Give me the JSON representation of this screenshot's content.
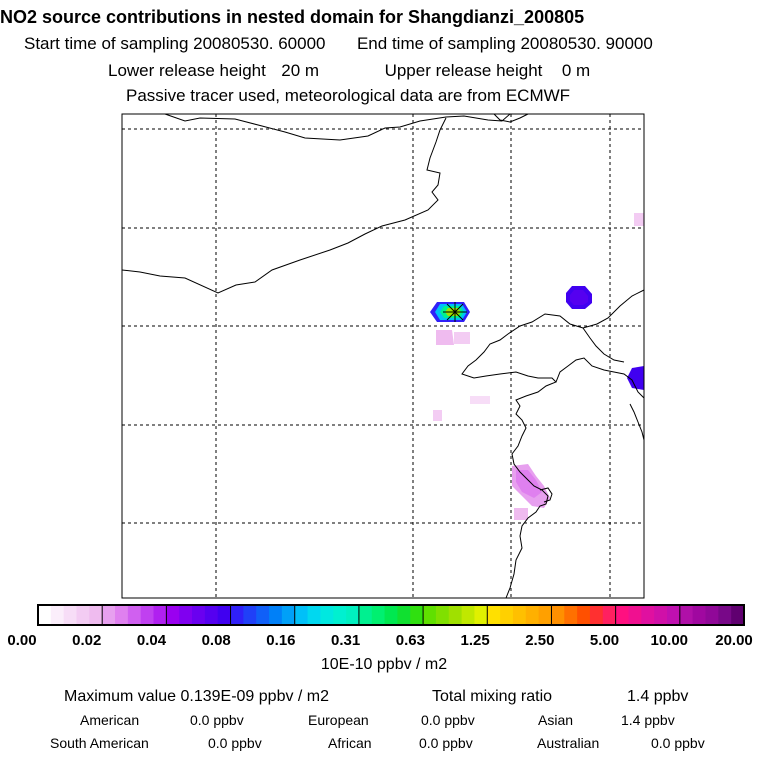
{
  "header": {
    "title": "NO2 source contributions in nested domain for Shangdianzi_200805",
    "start_label": "Start time of sampling",
    "start_value": "20080530. 60000",
    "end_label": "End time of sampling",
    "end_value": "20080530. 90000",
    "lower_label": "Lower release height",
    "lower_value": "20 m",
    "upper_label": "Upper release height",
    "upper_value": "0 m",
    "tracer_note": "Passive tracer used, meteorological data are from ECMWF"
  },
  "colorbar": {
    "tick_labels": [
      "0.00",
      "0.02",
      "0.04",
      "0.08",
      "0.16",
      "0.31",
      "0.63",
      "1.25",
      "2.50",
      "5.00",
      "10.00",
      "20.00"
    ],
    "segment_colors": [
      [
        "#ffffff",
        "#fbeefb",
        "#f7ddf7",
        "#f3ccf3",
        "#efbbef"
      ],
      [
        "#e7a0ef",
        "#df80ef",
        "#d060f0",
        "#c040f0",
        "#b020f0"
      ],
      [
        "#9a00f0",
        "#8000f0",
        "#6a00f0",
        "#5500f0",
        "#4000f0"
      ],
      [
        "#3020f8",
        "#2040f8",
        "#1060f8",
        "#0080f8",
        "#00a0f8"
      ],
      [
        "#00c0f8",
        "#00d8f0",
        "#00e8e0",
        "#00f0d0",
        "#00f0c0"
      ],
      [
        "#00f090",
        "#00f070",
        "#00e850",
        "#10e030",
        "#30e010"
      ],
      [
        "#60e000",
        "#80e000",
        "#a0e000",
        "#c0e800",
        "#e0f000"
      ],
      [
        "#ffe000",
        "#ffd000",
        "#ffc000",
        "#ffb000",
        "#ffa000"
      ],
      [
        "#ff9000",
        "#ff7000",
        "#ff5000",
        "#ff3030",
        "#ff2060"
      ],
      [
        "#ff1080",
        "#f01090",
        "#e010a0",
        "#d010a8",
        "#c010b0"
      ],
      [
        "#b010a8",
        "#a008a0",
        "#900898",
        "#780888",
        "#600070"
      ]
    ],
    "units": "10E-10 ppbv / m2"
  },
  "summary": {
    "max_label": "Maximum value",
    "max_value": "0.139E-09 ppbv / m2",
    "total_label": "Total mixing ratio",
    "total_value": "1.4 ppbv"
  },
  "regions": [
    {
      "name": "American",
      "value": "0.0 ppbv"
    },
    {
      "name": "European",
      "value": "0.0 ppbv"
    },
    {
      "name": "Asian",
      "value": "1.4 ppbv"
    },
    {
      "name": "South American",
      "value": "0.0 ppbv"
    },
    {
      "name": "African",
      "value": "0.0 ppbv"
    },
    {
      "name": "Australian",
      "value": "0.0 ppbv"
    }
  ],
  "colors": {
    "grid": "#000000",
    "coast": "#000000",
    "frame": "#000000"
  }
}
